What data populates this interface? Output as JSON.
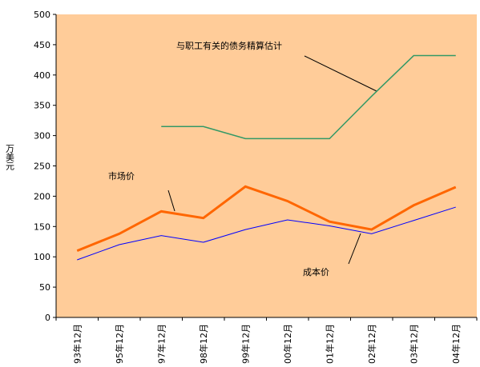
{
  "chart_data": {
    "type": "line",
    "y_label": "万美元",
    "categories": [
      "93年12月",
      "95年12月",
      "97年12月",
      "98年12月",
      "99年12月",
      "00年12月",
      "01年12月",
      "02年12月",
      "03年12月",
      "04年12月"
    ],
    "series": [
      {
        "name": "与职工有关的债务精算估计",
        "color": "#339966",
        "values": [
          null,
          null,
          315,
          315,
          295,
          295,
          295,
          365,
          432,
          432
        ]
      },
      {
        "name": "市场价",
        "color": "#FF6600",
        "values": [
          110,
          138,
          175,
          164,
          216,
          192,
          158,
          145,
          185,
          215
        ]
      },
      {
        "name": "成本价",
        "color": "#0000FF",
        "values": [
          95,
          120,
          135,
          124,
          145,
          161,
          151,
          138,
          160,
          182
        ]
      }
    ],
    "ylim": [
      0,
      500
    ],
    "yticks": [
      0,
      50,
      100,
      150,
      200,
      250,
      300,
      350,
      400,
      450,
      500
    ],
    "plot_background": "#FFCC99"
  }
}
